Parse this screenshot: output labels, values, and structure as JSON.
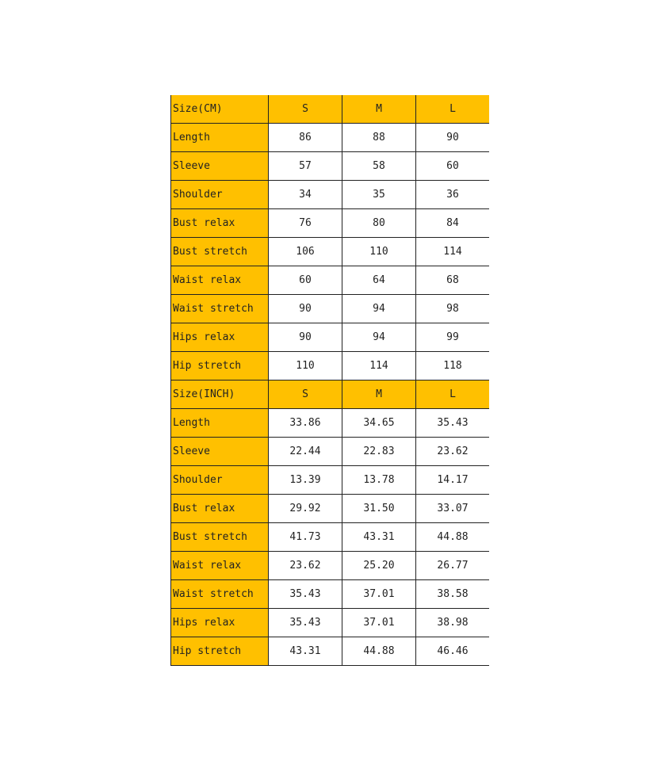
{
  "accent_color": "#FFC000",
  "tables": [
    {
      "header": [
        "Size(CM)",
        "S",
        "M",
        "L"
      ],
      "rows": [
        [
          "Length",
          "86",
          "88",
          "90"
        ],
        [
          "Sleeve",
          "57",
          "58",
          "60"
        ],
        [
          "Shoulder",
          "34",
          "35",
          "36"
        ],
        [
          "Bust relax",
          "76",
          "80",
          "84"
        ],
        [
          "Bust stretch",
          "106",
          "110",
          "114"
        ],
        [
          "Waist relax",
          "60",
          "64",
          "68"
        ],
        [
          "Waist stretch",
          "90",
          "94",
          "98"
        ],
        [
          "Hips relax",
          "90",
          "94",
          "99"
        ],
        [
          "Hip stretch",
          "110",
          "114",
          "118"
        ]
      ]
    },
    {
      "header": [
        "Size(INCH)",
        "S",
        "M",
        "L"
      ],
      "rows": [
        [
          "Length",
          "33.86",
          "34.65",
          "35.43"
        ],
        [
          "Sleeve",
          "22.44",
          "22.83",
          "23.62"
        ],
        [
          "Shoulder",
          "13.39",
          "13.78",
          "14.17"
        ],
        [
          "Bust relax",
          "29.92",
          "31.50",
          "33.07"
        ],
        [
          "Bust stretch",
          "41.73",
          "43.31",
          "44.88"
        ],
        [
          "Waist relax",
          "23.62",
          "25.20",
          "26.77"
        ],
        [
          "Waist stretch",
          "35.43",
          "37.01",
          "38.58"
        ],
        [
          "Hips relax",
          "35.43",
          "37.01",
          "38.98"
        ],
        [
          "Hip stretch",
          "43.31",
          "44.88",
          "46.46"
        ]
      ]
    }
  ]
}
